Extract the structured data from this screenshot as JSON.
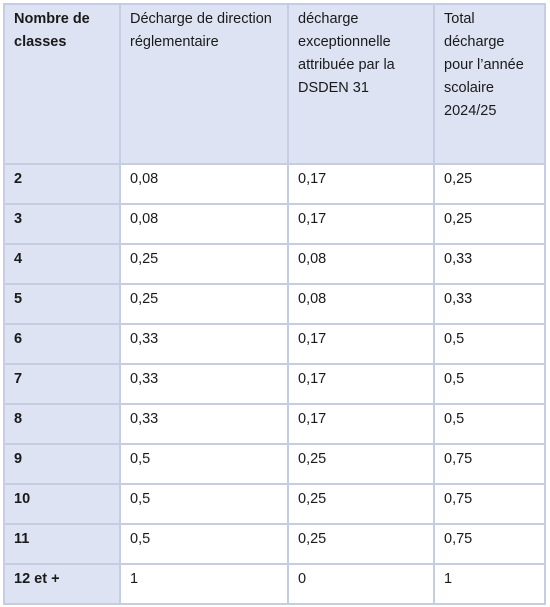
{
  "table": {
    "headers": [
      "Nombre de classes",
      "Décharge de direction réglementaire",
      "décharge exceptionnelle attribuée par la DSDEN 31",
      "Total décharge pour l’année scolaire 2024/25"
    ],
    "rows": [
      [
        "2",
        "0,08",
        "0,17",
        "0,25"
      ],
      [
        "3",
        "0,08",
        "0,17",
        "0,25"
      ],
      [
        "4",
        "0,25",
        "0,08",
        "0,33"
      ],
      [
        "5",
        "0,25",
        "0,08",
        "0,33"
      ],
      [
        "6",
        "0,33",
        "0,17",
        "0,5"
      ],
      [
        "7",
        "0,33",
        "0,17",
        "0,5"
      ],
      [
        "8",
        "0,33",
        "0,17",
        "0,5"
      ],
      [
        "9",
        "0,5",
        "0,25",
        "0,75"
      ],
      [
        "10",
        "0,5",
        "0,25",
        "0,75"
      ],
      [
        "11",
        "0,5",
        "0,25",
        "0,75"
      ],
      [
        "12 et +",
        "1",
        "0",
        "1"
      ]
    ]
  }
}
